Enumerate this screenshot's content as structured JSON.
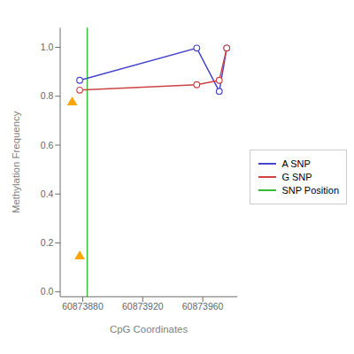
{
  "chart_data": {
    "type": "line",
    "xlabel": "CpG Coordinates",
    "ylabel": "Methylation Frequency",
    "series": [
      {
        "name": "A SNP",
        "type": "line",
        "color": "#4444cc",
        "marker": "circle",
        "line_style": "solid",
        "x": [
          60873878,
          60873956,
          60873971,
          60873976
        ],
        "values": [
          0.865,
          0.997,
          0.82,
          0.997
        ]
      },
      {
        "name": "G SNP",
        "type": "line",
        "color": "#cc4444",
        "marker": "circle",
        "line_style": "solid",
        "x": [
          60873878,
          60873956,
          60873971,
          60873976
        ],
        "values": [
          0.825,
          0.847,
          0.865,
          0.997
        ]
      },
      {
        "type": "scatter",
        "color": "#FFA500",
        "marker": "triangle",
        "x": [
          60873873,
          60873878
        ],
        "values": [
          0.775,
          0.145
        ]
      },
      {
        "name": "SNP Position",
        "type": "vline",
        "color": "#33bb33",
        "line_style": "solid",
        "x": 60873883
      }
    ],
    "xlim": [
      60873865,
      60873983
    ],
    "ylim": [
      -0.02,
      1.08
    ],
    "xticks": [
      60873880,
      60873920,
      60873960
    ],
    "yticks": [
      {
        "value": 0,
        "label": "0.0"
      },
      0.2,
      0.4,
      0.6,
      0.8,
      {
        "value": 1,
        "label": "1.0"
      }
    ],
    "grid": false,
    "legend": "right"
  }
}
